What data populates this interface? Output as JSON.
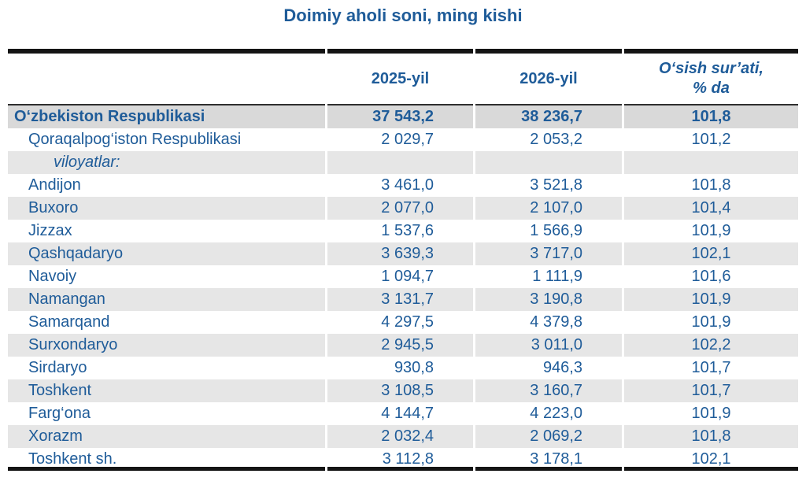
{
  "title": "Doimiy aholi soni, ming kishi",
  "colors": {
    "text_blue": "#1F5C99",
    "total_row_bg": "#D9D9D9",
    "stripe_row_bg": "#E6E6E6",
    "rule_black": "#141414"
  },
  "table": {
    "header": {
      "col_region": "",
      "col_2025": "2025-yil",
      "col_2026": "2026-yil",
      "col_growth": "O‘sish sur’ati,\n% da"
    }
  },
  "chart_data": {
    "type": "table",
    "title": "Doimiy aholi soni, ming kishi",
    "columns": [
      "",
      "2025-yil",
      "2026-yil",
      "O‘sish sur’ati, % da"
    ],
    "rows": [
      {
        "name": "O‘zbekiston Respublikasi",
        "y2025": "37 543,2",
        "y2026": "38 236,7",
        "growth": "101,8",
        "style": "total"
      },
      {
        "name": "Qoraqalpog‘iston Respublikasi",
        "y2025": "2 029,7",
        "y2026": "2 053,2",
        "growth": "101,2",
        "style": "normal"
      },
      {
        "name": "viloyatlar:",
        "y2025": "",
        "y2026": "",
        "growth": "",
        "style": "subheader"
      },
      {
        "name": "Andijon",
        "y2025": "3 461,0",
        "y2026": "3 521,8",
        "growth": "101,8",
        "style": "normal"
      },
      {
        "name": "Buxoro",
        "y2025": "2 077,0",
        "y2026": "2 107,0",
        "growth": "101,4",
        "style": "normal"
      },
      {
        "name": "Jizzax",
        "y2025": "1 537,6",
        "y2026": "1 566,9",
        "growth": "101,9",
        "style": "normal"
      },
      {
        "name": "Qashqadaryo",
        "y2025": "3 639,3",
        "y2026": "3 717,0",
        "growth": "102,1",
        "style": "normal"
      },
      {
        "name": "Navoiy",
        "y2025": "1 094,7",
        "y2026": "1 111,9",
        "growth": "101,6",
        "style": "normal"
      },
      {
        "name": "Namangan",
        "y2025": "3 131,7",
        "y2026": "3 190,8",
        "growth": "101,9",
        "style": "normal"
      },
      {
        "name": "Samarqand",
        "y2025": "4 297,5",
        "y2026": "4 379,8",
        "growth": "101,9",
        "style": "normal"
      },
      {
        "name": "Surxondaryo",
        "y2025": "2 945,5",
        "y2026": "3 011,0",
        "growth": "102,2",
        "style": "normal"
      },
      {
        "name": "Sirdaryo",
        "y2025": "930,8",
        "y2026": "946,3",
        "growth": "101,7",
        "style": "normal"
      },
      {
        "name": "Toshkent",
        "y2025": "3 108,5",
        "y2026": "3 160,7",
        "growth": "101,7",
        "style": "normal"
      },
      {
        "name": "Farg‘ona",
        "y2025": "4 144,7",
        "y2026": "4 223,0",
        "growth": "101,9",
        "style": "normal"
      },
      {
        "name": "Xorazm",
        "y2025": "2 032,4",
        "y2026": "2 069,2",
        "growth": "101,8",
        "style": "normal"
      },
      {
        "name": "Toshkent sh.",
        "y2025": "3 112,8",
        "y2026": "3 178,1",
        "growth": "102,1",
        "style": "normal"
      }
    ]
  }
}
